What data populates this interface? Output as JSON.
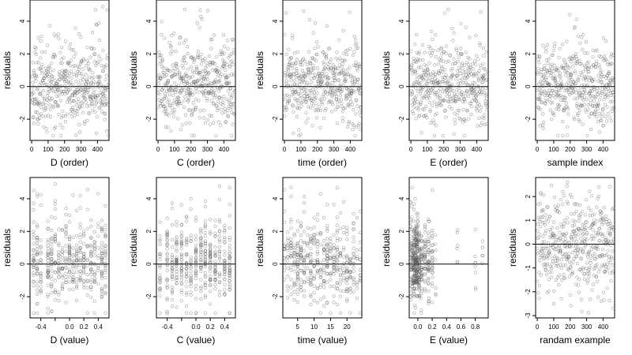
{
  "chart_data": [
    {
      "type": "scatter",
      "xlabel": "D (order)",
      "ylabel": "residuals",
      "xlim": [
        -10,
        470
      ],
      "ylim": [
        -3.3,
        5.3
      ],
      "xticks": [
        0,
        100,
        200,
        300,
        400
      ],
      "yticks": [
        -2,
        0,
        2,
        4
      ],
      "hline": 0,
      "seed": 11,
      "n": 470,
      "x_dist": "index",
      "y_dist": "clipped",
      "y_range": [
        -3,
        5
      ],
      "note_x_rule": "uniform"
    },
    {
      "type": "scatter",
      "xlabel": "C (order)",
      "ylabel": "residuals",
      "xlim": [
        -10,
        470
      ],
      "ylim": [
        -3.3,
        5.3
      ],
      "xticks": [
        0,
        100,
        200,
        300,
        400
      ],
      "yticks": [
        -2,
        0,
        2,
        4
      ],
      "hline": 0,
      "seed": 23,
      "n": 470,
      "x_dist": "index",
      "y_dist": "clipped",
      "y_range": [
        -3,
        5
      ]
    },
    {
      "type": "scatter",
      "xlabel": "time (order)",
      "ylabel": "residuals",
      "xlim": [
        -10,
        470
      ],
      "ylim": [
        -3.3,
        5.3
      ],
      "xticks": [
        0,
        100,
        200,
        300,
        400
      ],
      "yticks": [
        -2,
        0,
        2,
        4
      ],
      "hline": 0,
      "seed": 37,
      "n": 470,
      "x_dist": "index",
      "y_dist": "clipped",
      "y_range": [
        -3,
        5
      ]
    },
    {
      "type": "scatter",
      "xlabel": "E (order)",
      "ylabel": "residuals",
      "xlim": [
        -10,
        470
      ],
      "ylim": [
        -3.3,
        5.3
      ],
      "xticks": [
        0,
        100,
        200,
        300,
        400
      ],
      "yticks": [
        -2,
        0,
        2,
        4
      ],
      "hline": 0,
      "seed": 41,
      "n": 470,
      "x_dist": "index",
      "y_dist": "clipped",
      "y_range": [
        -3,
        5
      ]
    },
    {
      "type": "scatter",
      "xlabel": "sample index",
      "ylabel": "residuals",
      "xlim": [
        -10,
        470
      ],
      "ylim": [
        -3.3,
        5.3
      ],
      "xticks": [
        0,
        100,
        200,
        300,
        400
      ],
      "yticks": [
        -2,
        0,
        2,
        4
      ],
      "hline": 0,
      "seed": 53,
      "n": 470,
      "x_dist": "index",
      "y_dist": "clipped",
      "y_range": [
        -3,
        5
      ]
    },
    {
      "type": "scatter",
      "xlabel": "D (value)",
      "ylabel": "residuals",
      "xlim": [
        -0.55,
        0.55
      ],
      "ylim": [
        -3.3,
        5.3
      ],
      "xticks": [
        -0.4,
        -0.2,
        0,
        0.2,
        0.4
      ],
      "xticklabels": [
        "-0.4",
        "",
        "0.0",
        "0.2",
        "0.4"
      ],
      "yticks": [
        -2,
        0,
        2,
        4
      ],
      "hline": 0,
      "seed": 67,
      "n": 470,
      "x_dist": "discrete",
      "x_levels": [
        -0.5,
        -0.45,
        -0.4,
        -0.3,
        -0.25,
        -0.2,
        -0.15,
        -0.1,
        -0.05,
        0,
        0.05,
        0.1,
        0.15,
        0.2,
        0.25,
        0.3,
        0.35,
        0.4,
        0.45,
        0.5
      ],
      "y_dist": "clipped",
      "y_range": [
        -3,
        5
      ]
    },
    {
      "type": "scatter",
      "xlabel": "C (value)",
      "ylabel": "residuals",
      "xlim": [
        -0.55,
        0.55
      ],
      "ylim": [
        -3.3,
        5.3
      ],
      "xticks": [
        -0.4,
        -0.2,
        0,
        0.2,
        0.4
      ],
      "xticklabels": [
        "-0.4",
        "",
        "0.0",
        "0.2",
        "0.4"
      ],
      "yticks": [
        -2,
        0,
        2,
        4
      ],
      "hline": 0,
      "seed": 71,
      "n": 470,
      "x_dist": "discrete",
      "x_levels": [
        -0.5,
        -0.4,
        -0.33,
        -0.27,
        -0.2,
        -0.13,
        -0.07,
        0,
        0.07,
        0.13,
        0.2,
        0.27,
        0.33,
        0.4,
        0.47
      ],
      "y_dist": "clipped",
      "y_range": [
        -3,
        5
      ]
    },
    {
      "type": "scatter",
      "xlabel": "time (value)",
      "ylabel": "residuals",
      "xlim": [
        0.5,
        24.5
      ],
      "ylim": [
        -3.3,
        5.3
      ],
      "xticks": [
        5,
        10,
        15,
        20
      ],
      "yticks": [
        -2,
        0,
        2,
        4
      ],
      "hline": 0,
      "seed": 83,
      "n": 470,
      "x_dist": "discrete",
      "x_levels": [
        1,
        2,
        3,
        4,
        5,
        6,
        7,
        8,
        9,
        10,
        11,
        12,
        13,
        14,
        15,
        16,
        17,
        18,
        19,
        20,
        21,
        22,
        23,
        24
      ],
      "y_dist": "clipped",
      "y_range": [
        -3,
        5
      ]
    },
    {
      "type": "scatter",
      "xlabel": "E (value)",
      "ylabel": "residuals",
      "xlim": [
        -0.12,
        0.98
      ],
      "ylim": [
        -3.3,
        5.3
      ],
      "xticks": [
        0,
        0.2,
        0.4,
        0.6,
        0.8
      ],
      "xticklabels": [
        "0.0",
        "0.2",
        "0.4",
        "0.6",
        "0.8"
      ],
      "yticks": [
        -2,
        0,
        2,
        4
      ],
      "hline": 0,
      "seed": 97,
      "n": 470,
      "x_dist": "skewed",
      "x_levels": [
        -0.1,
        -0.08,
        -0.06,
        -0.05,
        -0.04,
        -0.03,
        -0.02,
        -0.01,
        0,
        0.02,
        0.05,
        0.1,
        0.15,
        0.2,
        0.25,
        0.55,
        0.8,
        0.9
      ],
      "y_dist": "clipped",
      "y_range": [
        -3,
        5
      ]
    },
    {
      "type": "scatter",
      "xlabel": "randam example",
      "ylabel": "residuals",
      "xlim": [
        -10,
        470
      ],
      "ylim": [
        -3.1,
        2.8
      ],
      "xticks": [
        0,
        100,
        200,
        300,
        400
      ],
      "yticks": [
        -3,
        -2,
        -1,
        0,
        1,
        2
      ],
      "hline": 0,
      "seed": 101,
      "n": 470,
      "x_dist": "index",
      "y_dist": "normal",
      "y_range": [
        -3,
        2.6
      ]
    }
  ]
}
